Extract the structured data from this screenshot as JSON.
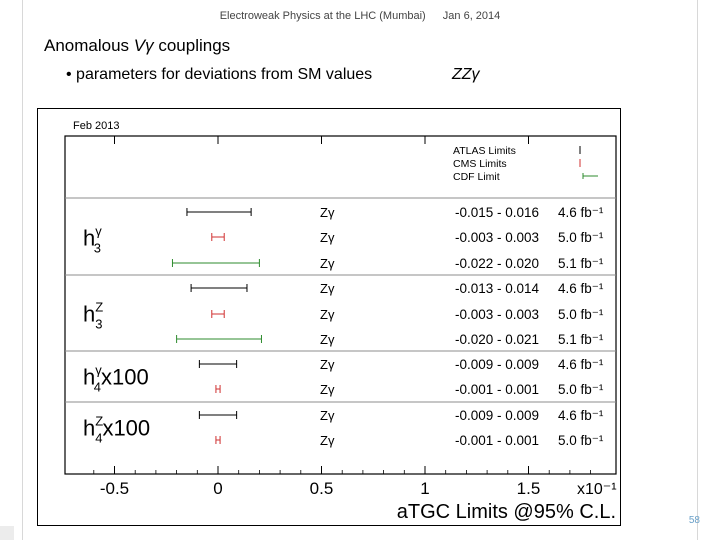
{
  "header": {
    "left": "Electroweak Physics at the LHC (Mumbai)",
    "right": "Jan 6, 2014"
  },
  "slide": {
    "title_prefix": "Anomalous ",
    "title_symbol": "Vγ",
    "title_suffix": " couplings",
    "bullet": "• parameters for deviations from  SM values",
    "bullet_right": "ZZγ",
    "page_number": "58"
  },
  "colors": {
    "atlas": "#000000",
    "cms": "#d03030",
    "cdf": "#2e8b2e",
    "separator": "#8c8c8c"
  },
  "chart_data": {
    "type": "interval",
    "date_label": "Feb 2013",
    "xlabel": "aTGC Limits @95% C.L.",
    "x_multiplier": "x10⁻¹",
    "xlim": [
      -0.7,
      1.9
    ],
    "x_ticks": [
      {
        "value": -0.5,
        "label": "-0.5"
      },
      {
        "value": 0,
        "label": "0"
      },
      {
        "value": 0.5,
        "label": "0.5"
      },
      {
        "value": 1,
        "label": "1"
      },
      {
        "value": 1.5,
        "label": "1.5"
      }
    ],
    "legend": [
      {
        "name": "ATLAS Limits",
        "experiment": "atlas"
      },
      {
        "name": "CMS Limits",
        "experiment": "cms"
      },
      {
        "name": "CDF Limit",
        "experiment": "cdf"
      }
    ],
    "groups": [
      {
        "label": "h",
        "sup": "γ",
        "sub": "3",
        "suffix": "",
        "rows": [
          {
            "channel": "Zγ",
            "experiment": "atlas",
            "low": -0.015,
            "high": 0.016,
            "range_text": "-0.015 - 0.016",
            "lumi": "4.6 fb⁻¹"
          },
          {
            "channel": "Zγ",
            "experiment": "cms",
            "low": -0.003,
            "high": 0.003,
            "range_text": "-0.003 - 0.003",
            "lumi": "5.0 fb⁻¹"
          },
          {
            "channel": "Zγ",
            "experiment": "cdf",
            "low": -0.022,
            "high": 0.02,
            "range_text": "-0.022 - 0.020",
            "lumi": "5.1 fb⁻¹"
          }
        ]
      },
      {
        "label": "h",
        "sup": "Z",
        "sub": "3",
        "suffix": "",
        "rows": [
          {
            "channel": "Zγ",
            "experiment": "atlas",
            "low": -0.013,
            "high": 0.014,
            "range_text": "-0.013 - 0.014",
            "lumi": "4.6 fb⁻¹"
          },
          {
            "channel": "Zγ",
            "experiment": "cms",
            "low": -0.003,
            "high": 0.003,
            "range_text": "-0.003 - 0.003",
            "lumi": "5.0 fb⁻¹"
          },
          {
            "channel": "Zγ",
            "experiment": "cdf",
            "low": -0.02,
            "high": 0.021,
            "range_text": "-0.020 - 0.021",
            "lumi": "5.1 fb⁻¹"
          }
        ]
      },
      {
        "label": "h",
        "sup": "γ",
        "sub": "4",
        "suffix": "x100",
        "rows": [
          {
            "channel": "Zγ",
            "experiment": "atlas",
            "low": -0.009,
            "high": 0.009,
            "range_text": "-0.009 - 0.009",
            "lumi": "4.6 fb⁻¹"
          },
          {
            "channel": "Zγ",
            "experiment": "cms",
            "low": -0.001,
            "high": 0.001,
            "range_text": "-0.001 - 0.001",
            "lumi": "5.0 fb⁻¹"
          }
        ]
      },
      {
        "label": "h",
        "sup": "Z",
        "sub": "4",
        "suffix": "x100",
        "rows": [
          {
            "channel": "Zγ",
            "experiment": "atlas",
            "low": -0.009,
            "high": 0.009,
            "range_text": "-0.009 - 0.009",
            "lumi": "4.6 fb⁻¹"
          },
          {
            "channel": "Zγ",
            "experiment": "cms",
            "low": -0.001,
            "high": 0.001,
            "range_text": "-0.001 - 0.001",
            "lumi": "5.0 fb⁻¹"
          }
        ]
      }
    ]
  }
}
